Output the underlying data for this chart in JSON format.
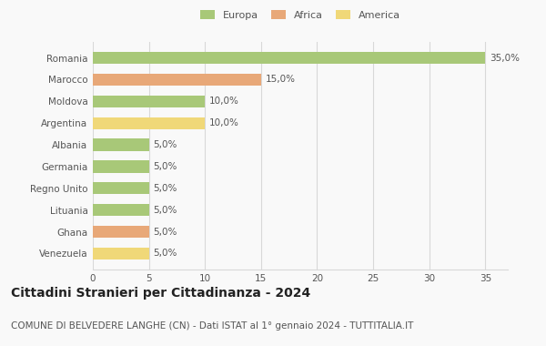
{
  "countries": [
    "Romania",
    "Marocco",
    "Moldova",
    "Argentina",
    "Albania",
    "Germania",
    "Regno Unito",
    "Lituania",
    "Ghana",
    "Venezuela"
  ],
  "values": [
    35.0,
    15.0,
    10.0,
    10.0,
    5.0,
    5.0,
    5.0,
    5.0,
    5.0,
    5.0
  ],
  "continents": [
    "Europa",
    "Africa",
    "Europa",
    "America",
    "Europa",
    "Europa",
    "Europa",
    "Europa",
    "Africa",
    "America"
  ],
  "colors": {
    "Europa": "#a8c878",
    "Africa": "#e8a878",
    "America": "#f0d878"
  },
  "xlim": [
    0,
    37
  ],
  "xticks": [
    0,
    5,
    10,
    15,
    20,
    25,
    30,
    35
  ],
  "title": "Cittadini Stranieri per Cittadinanza - 2024",
  "subtitle": "COMUNE DI BELVEDERE LANGHE (CN) - Dati ISTAT al 1° gennaio 2024 - TUTTITALIA.IT",
  "bg_color": "#f9f9f9",
  "grid_color": "#d8d8d8",
  "title_fontsize": 10,
  "subtitle_fontsize": 7.5,
  "tick_fontsize": 7.5,
  "bar_label_fontsize": 7.5,
  "legend_fontsize": 8
}
